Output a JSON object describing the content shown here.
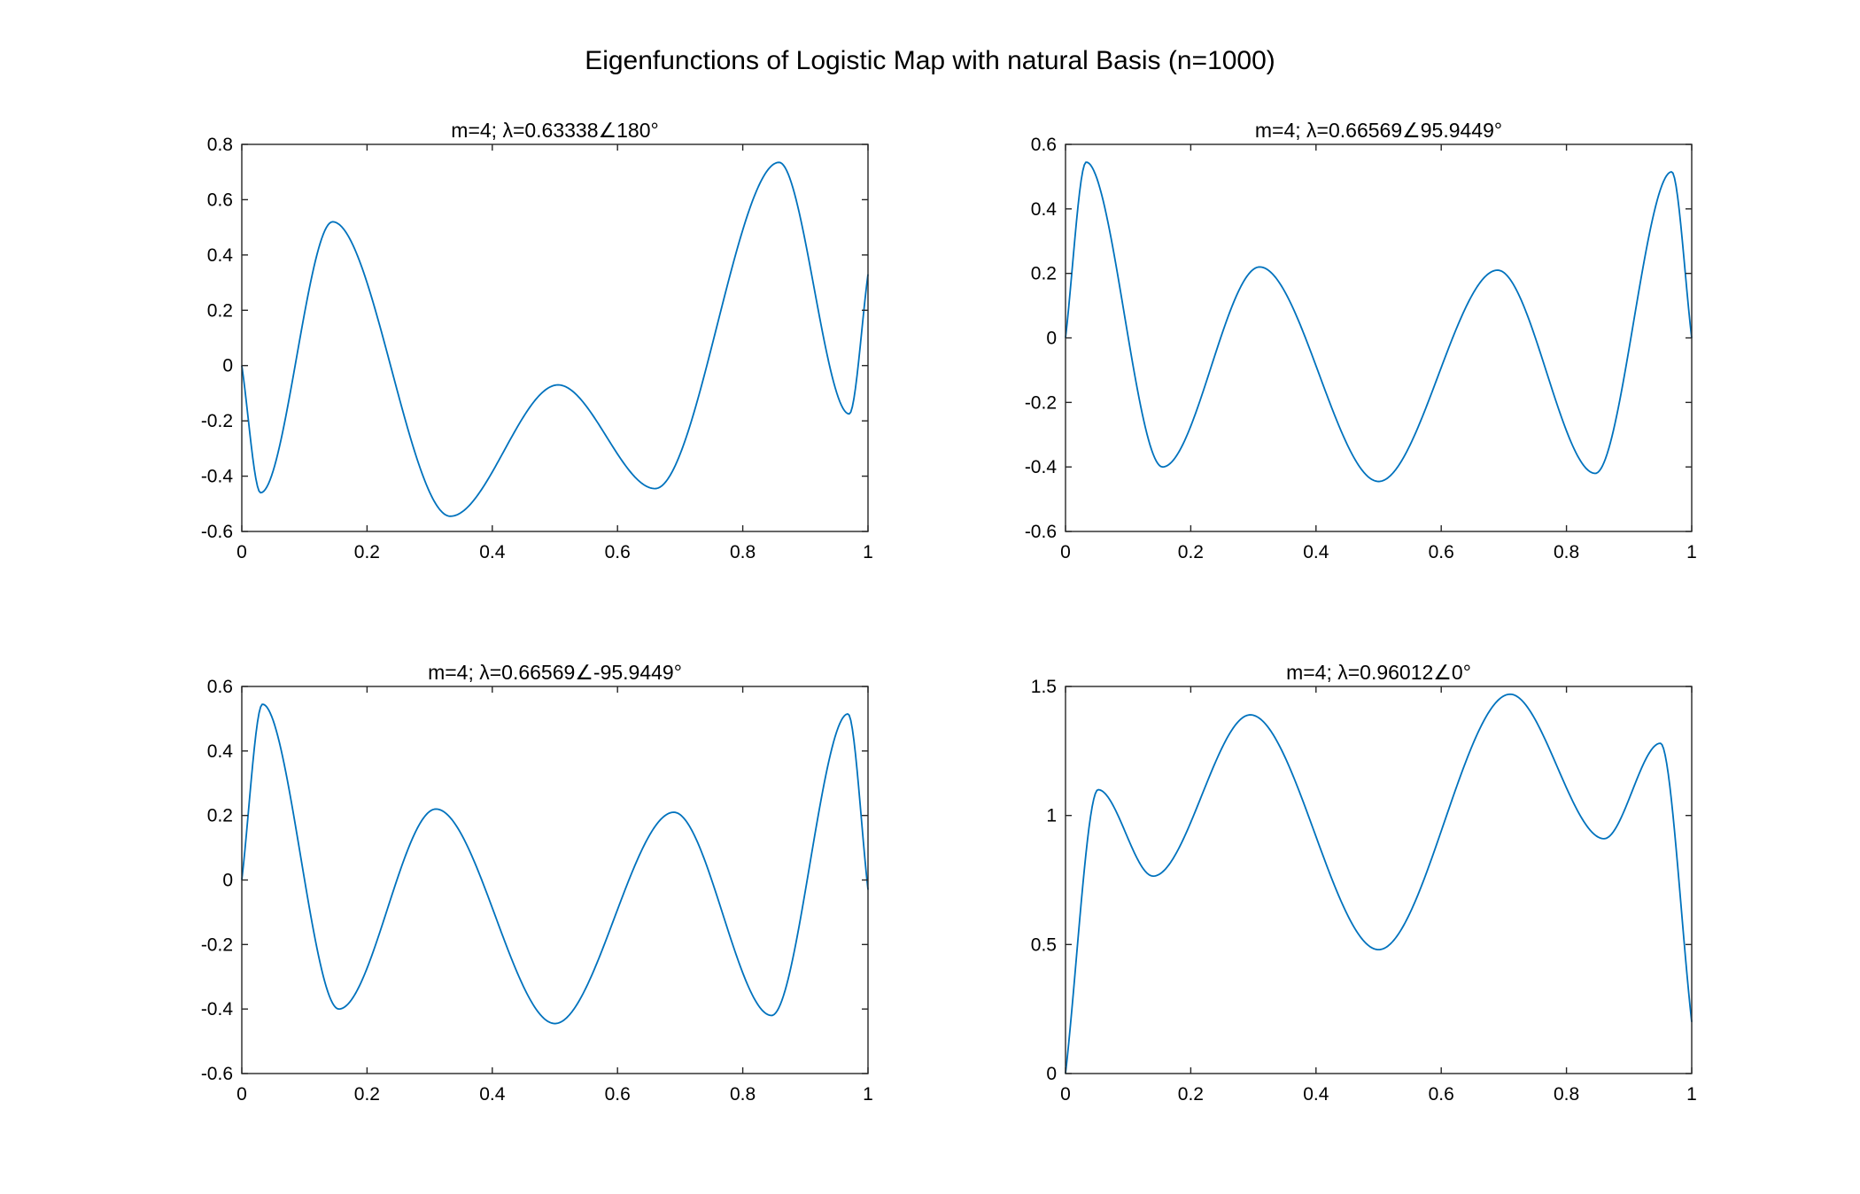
{
  "figure": {
    "title": "Eigenfunctions of Logistic Map with natural Basis (n=1000)"
  },
  "colors": {
    "line": "#0072BD",
    "axis": "#262626"
  },
  "chart_data": [
    {
      "type": "line",
      "title": "m=4; λ=0.63338∠180°",
      "xlabel": "",
      "ylabel": "",
      "xlim": [
        0,
        1
      ],
      "ylim": [
        -0.6,
        0.8
      ],
      "xticks": [
        0,
        0.2,
        0.4,
        0.6,
        0.8,
        1
      ],
      "xtick_labels": [
        "0",
        "0.2",
        "0.4",
        "0.6",
        "0.8",
        "1"
      ],
      "yticks": [
        -0.6,
        -0.4,
        -0.2,
        0,
        0.2,
        0.4,
        0.6,
        0.8
      ],
      "ytick_labels": [
        "-0.6",
        "-0.4",
        "-0.2",
        "0",
        "0.2",
        "0.4",
        "0.6",
        "0.8"
      ],
      "grid": false,
      "series": [
        {
          "x": [
            0,
            0.03,
            0.145,
            0.333,
            0.505,
            0.66,
            0.858,
            0.97,
            1
          ],
          "y": [
            0,
            -0.46,
            0.52,
            -0.545,
            -0.07,
            -0.445,
            0.735,
            -0.175,
            0.33
          ]
        }
      ]
    },
    {
      "type": "line",
      "title": "m=4; λ=0.66569∠95.9449°",
      "xlabel": "",
      "ylabel": "",
      "xlim": [
        0,
        1
      ],
      "ylim": [
        -0.6,
        0.6
      ],
      "xticks": [
        0,
        0.2,
        0.4,
        0.6,
        0.8,
        1
      ],
      "xtick_labels": [
        "0",
        "0.2",
        "0.4",
        "0.6",
        "0.8",
        "1"
      ],
      "yticks": [
        -0.6,
        -0.4,
        -0.2,
        0,
        0.2,
        0.4,
        0.6
      ],
      "ytick_labels": [
        "-0.6",
        "-0.4",
        "-0.2",
        "0",
        "0.2",
        "0.4",
        "0.6"
      ],
      "grid": false,
      "series": [
        {
          "x": [
            0,
            0.033,
            0.155,
            0.31,
            0.5,
            0.69,
            0.846,
            0.968,
            1
          ],
          "y": [
            0,
            0.545,
            -0.4,
            0.22,
            -0.445,
            0.21,
            -0.42,
            0.515,
            0
          ]
        }
      ]
    },
    {
      "type": "line",
      "title": "m=4; λ=0.66569∠-95.9449°",
      "xlabel": "",
      "ylabel": "",
      "xlim": [
        0,
        1
      ],
      "ylim": [
        -0.6,
        0.6
      ],
      "xticks": [
        0,
        0.2,
        0.4,
        0.6,
        0.8,
        1
      ],
      "xtick_labels": [
        "0",
        "0.2",
        "0.4",
        "0.6",
        "0.8",
        "1"
      ],
      "yticks": [
        -0.6,
        -0.4,
        -0.2,
        0,
        0.2,
        0.4,
        0.6
      ],
      "ytick_labels": [
        "-0.6",
        "-0.4",
        "-0.2",
        "0",
        "0.2",
        "0.4",
        "0.6"
      ],
      "grid": false,
      "series": [
        {
          "x": [
            0,
            0.033,
            0.155,
            0.31,
            0.5,
            0.69,
            0.846,
            0.968,
            1
          ],
          "y": [
            0,
            0.545,
            -0.4,
            0.22,
            -0.445,
            0.21,
            -0.42,
            0.515,
            -0.03
          ]
        }
      ]
    },
    {
      "type": "line",
      "title": "m=4; λ=0.96012∠0°",
      "xlabel": "",
      "ylabel": "",
      "xlim": [
        0,
        1
      ],
      "ylim": [
        0,
        1.5
      ],
      "xticks": [
        0,
        0.2,
        0.4,
        0.6,
        0.8,
        1
      ],
      "xtick_labels": [
        "0",
        "0.2",
        "0.4",
        "0.6",
        "0.8",
        "1"
      ],
      "yticks": [
        0,
        0.5,
        1,
        1.5
      ],
      "ytick_labels": [
        "0",
        "0.5",
        "1",
        "1.5"
      ],
      "grid": false,
      "series": [
        {
          "x": [
            0,
            0.052,
            0.14,
            0.295,
            0.5,
            0.71,
            0.86,
            0.95,
            1
          ],
          "y": [
            0,
            1.1,
            0.765,
            1.39,
            0.48,
            1.47,
            0.91,
            1.28,
            0.2
          ]
        }
      ]
    }
  ]
}
